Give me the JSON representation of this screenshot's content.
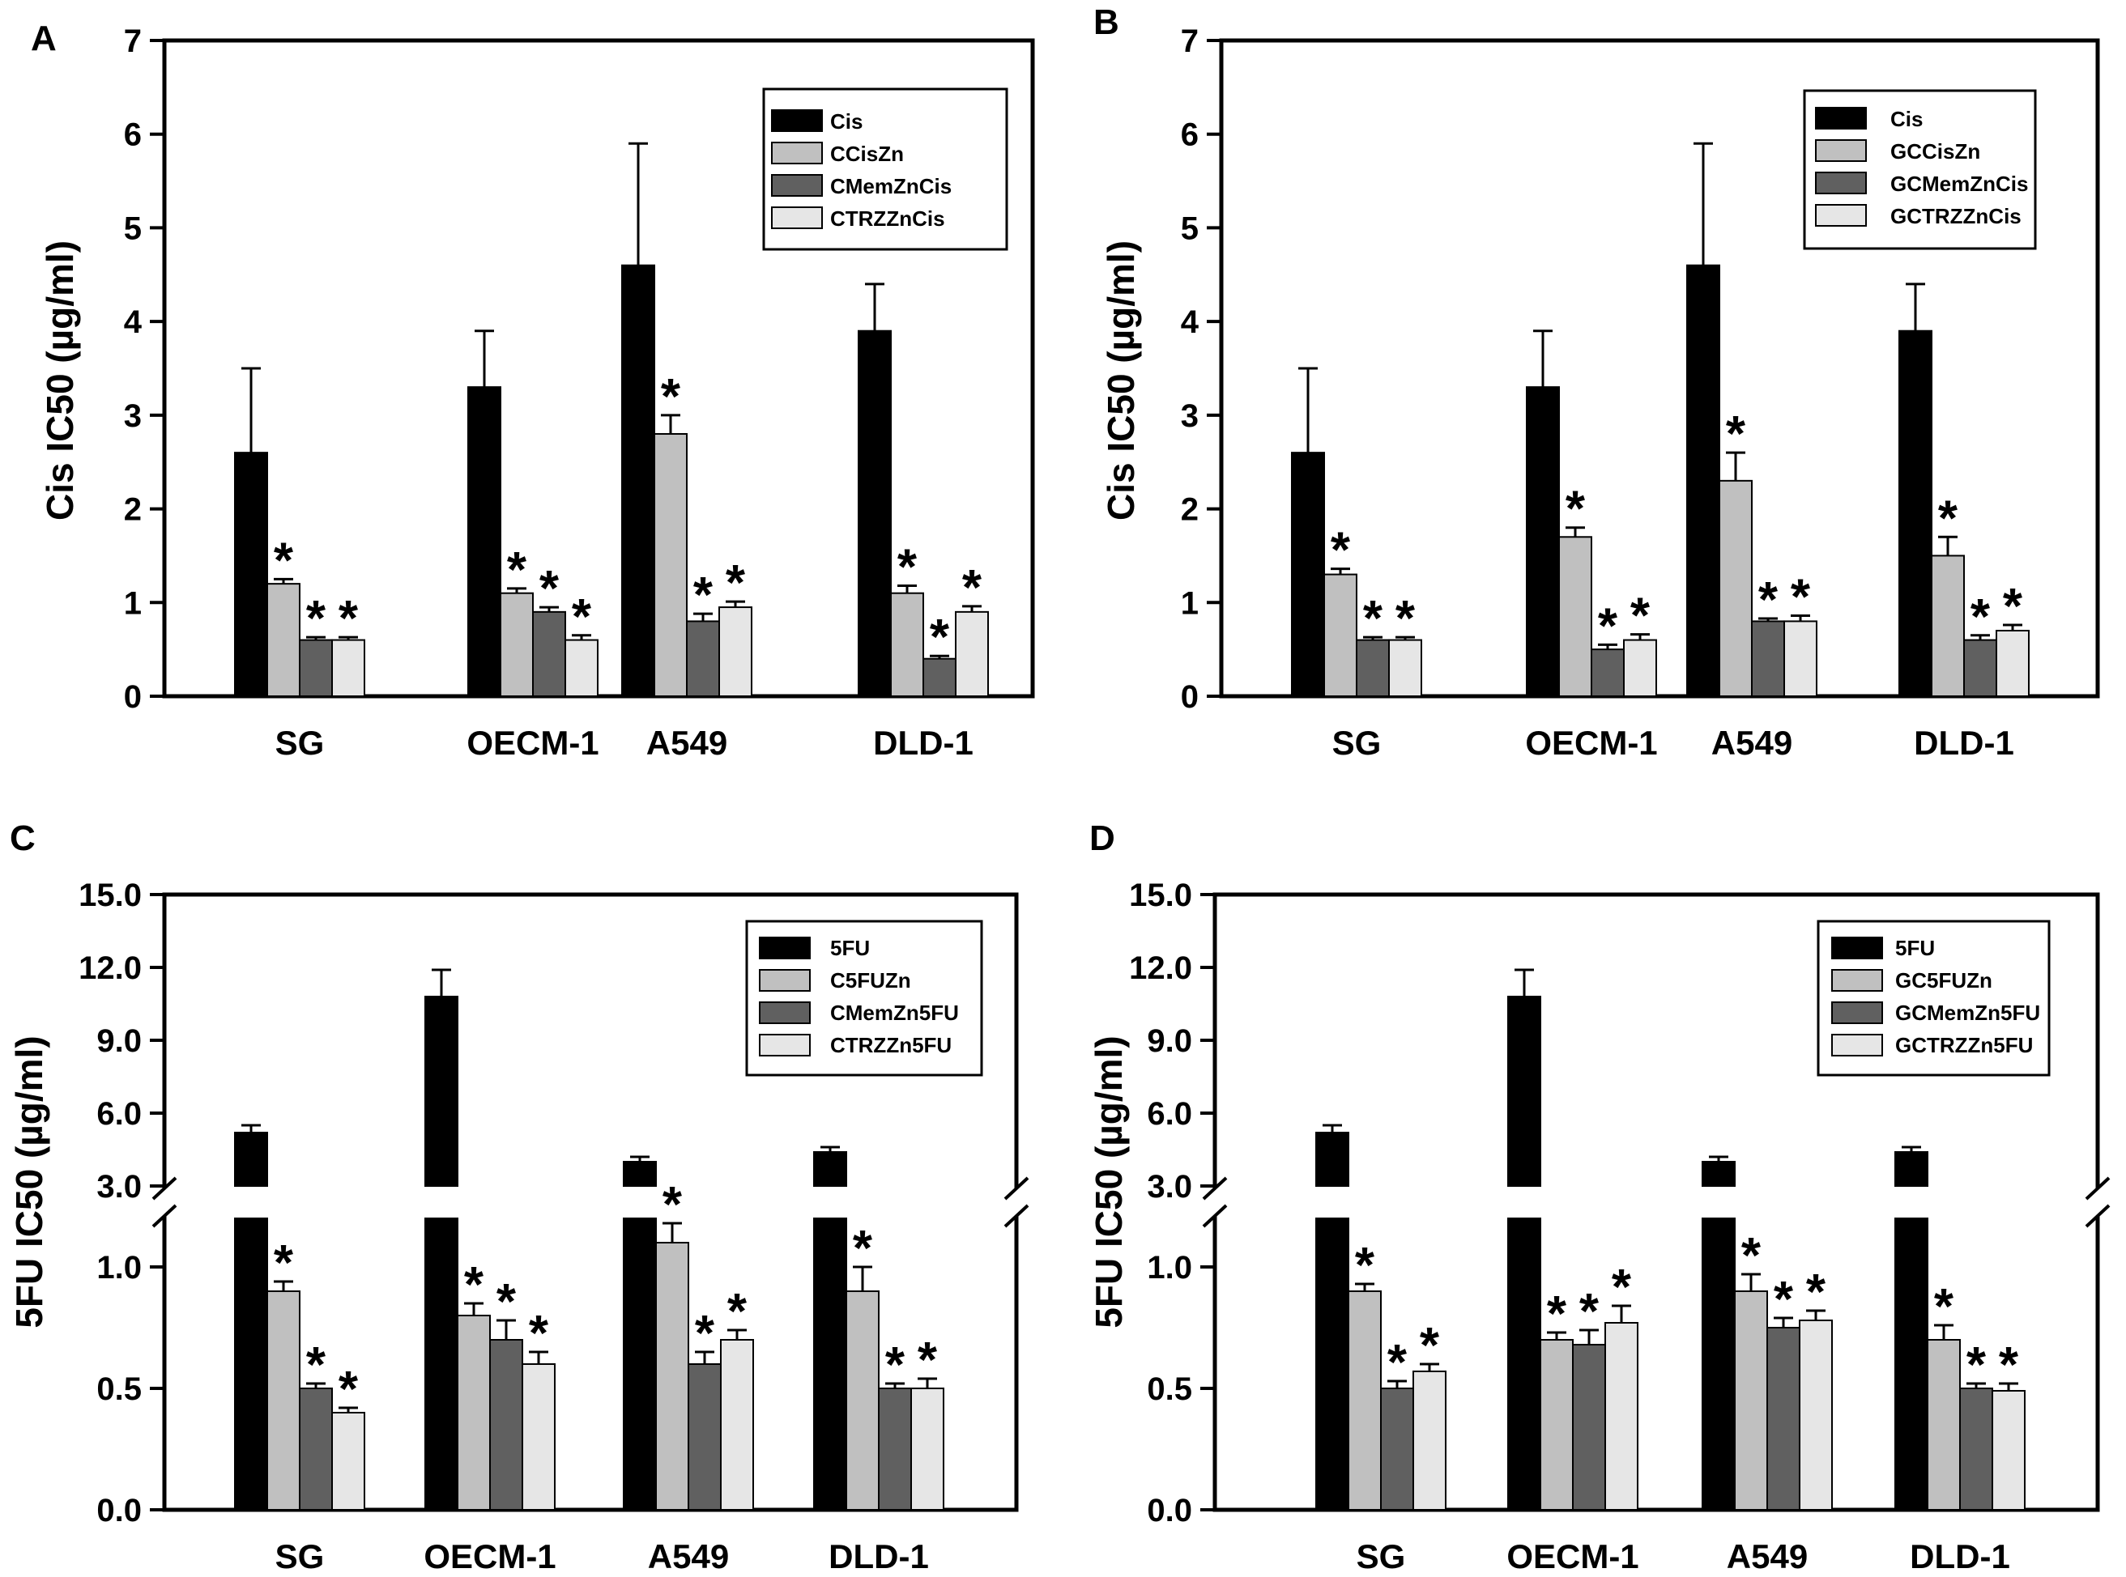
{
  "figure": {
    "categories": [
      "SG",
      "OECM-1",
      "A549",
      "DLD-1"
    ],
    "colors": [
      "#000000",
      "#c0c0c0",
      "#606060",
      "#e6e6e6"
    ],
    "significance_symbol": "*"
  },
  "chart_data": [
    {
      "panel": "A",
      "type": "bar",
      "ylabel": "Cis IC50 (µg/ml)",
      "ylim": [
        0,
        7
      ],
      "yticks": [
        "0",
        "1",
        "2",
        "3",
        "4",
        "5",
        "6",
        "7"
      ],
      "categories": [
        "SG",
        "OECM-1",
        "A549",
        "DLD-1"
      ],
      "series": [
        {
          "name": "Cis",
          "values": [
            2.6,
            3.3,
            4.6,
            3.9
          ],
          "errors": [
            0.9,
            0.6,
            1.3,
            0.5
          ],
          "significant": [
            false,
            false,
            false,
            false
          ]
        },
        {
          "name": "CCisZn",
          "values": [
            1.2,
            1.1,
            2.8,
            1.1
          ],
          "errors": [
            0.05,
            0.05,
            0.2,
            0.08
          ],
          "significant": [
            true,
            true,
            true,
            true
          ]
        },
        {
          "name": "CMemZnCis",
          "values": [
            0.6,
            0.9,
            0.8,
            0.4
          ],
          "errors": [
            0.03,
            0.05,
            0.08,
            0.03
          ],
          "significant": [
            true,
            true,
            true,
            true
          ]
        },
        {
          "name": "CTRZZnCis",
          "values": [
            0.6,
            0.6,
            0.95,
            0.9
          ],
          "errors": [
            0.03,
            0.05,
            0.06,
            0.06
          ],
          "significant": [
            true,
            true,
            true,
            true
          ]
        }
      ]
    },
    {
      "panel": "B",
      "type": "bar",
      "ylabel": "Cis IC50 (µg/ml)",
      "ylim": [
        0,
        7
      ],
      "yticks": [
        "0",
        "1",
        "2",
        "3",
        "4",
        "5",
        "6",
        "7"
      ],
      "categories": [
        "SG",
        "OECM-1",
        "A549",
        "DLD-1"
      ],
      "series": [
        {
          "name": "Cis",
          "values": [
            2.6,
            3.3,
            4.6,
            3.9
          ],
          "errors": [
            0.9,
            0.6,
            1.3,
            0.5
          ],
          "significant": [
            false,
            false,
            false,
            false
          ]
        },
        {
          "name": "GCCisZn",
          "values": [
            1.3,
            1.7,
            2.3,
            1.5
          ],
          "errors": [
            0.06,
            0.1,
            0.3,
            0.2
          ],
          "significant": [
            true,
            true,
            true,
            true
          ]
        },
        {
          "name": "GCMemZnCis",
          "values": [
            0.6,
            0.5,
            0.8,
            0.6
          ],
          "errors": [
            0.03,
            0.05,
            0.03,
            0.05
          ],
          "significant": [
            true,
            true,
            true,
            true
          ]
        },
        {
          "name": "GCTRZZnCis",
          "values": [
            0.6,
            0.6,
            0.8,
            0.7
          ],
          "errors": [
            0.03,
            0.06,
            0.06,
            0.06
          ],
          "significant": [
            true,
            true,
            true,
            true
          ]
        }
      ]
    },
    {
      "panel": "C",
      "type": "bar",
      "broken_axis": true,
      "ylabel": "5FU IC50 (µg/ml)",
      "ylim_lower": [
        0,
        1.2
      ],
      "ylim_upper": [
        3,
        15
      ],
      "yticks_lower": [
        "0.0",
        "0.5",
        "1.0"
      ],
      "yticks_upper": [
        "3.0",
        "6.0",
        "9.0",
        "12.0",
        "15.0"
      ],
      "categories": [
        "SG",
        "OECM-1",
        "A549",
        "DLD-1"
      ],
      "series": [
        {
          "name": "5FU",
          "values": [
            5.2,
            10.8,
            4.0,
            4.4
          ],
          "errors": [
            0.3,
            1.1,
            0.2,
            0.2
          ],
          "significant": [
            false,
            false,
            false,
            false
          ]
        },
        {
          "name": "C5FUZn",
          "values": [
            0.9,
            0.8,
            1.1,
            0.9
          ],
          "errors": [
            0.04,
            0.05,
            0.08,
            0.1
          ],
          "significant": [
            true,
            true,
            true,
            true
          ]
        },
        {
          "name": "CMemZn5FU",
          "values": [
            0.5,
            0.7,
            0.6,
            0.5
          ],
          "errors": [
            0.02,
            0.08,
            0.05,
            0.02
          ],
          "significant": [
            true,
            true,
            true,
            true
          ]
        },
        {
          "name": "CTRZZn5FU",
          "values": [
            0.4,
            0.6,
            0.7,
            0.5
          ],
          "errors": [
            0.02,
            0.05,
            0.04,
            0.04
          ],
          "significant": [
            true,
            true,
            true,
            true
          ]
        }
      ]
    },
    {
      "panel": "D",
      "type": "bar",
      "broken_axis": true,
      "ylabel": "5FU IC50 (µg/ml)",
      "ylim_lower": [
        0,
        1.2
      ],
      "ylim_upper": [
        3,
        15
      ],
      "yticks_lower": [
        "0.0",
        "0.5",
        "1.0"
      ],
      "yticks_upper": [
        "3.0",
        "6.0",
        "9.0",
        "12.0",
        "15.0"
      ],
      "categories": [
        "SG",
        "OECM-1",
        "A549",
        "DLD-1"
      ],
      "series": [
        {
          "name": "5FU",
          "values": [
            5.2,
            10.8,
            4.0,
            4.4
          ],
          "errors": [
            0.3,
            1.1,
            0.2,
            0.2
          ],
          "significant": [
            false,
            false,
            false,
            false
          ]
        },
        {
          "name": "GC5FUZn",
          "values": [
            0.9,
            0.7,
            0.9,
            0.7
          ],
          "errors": [
            0.03,
            0.03,
            0.07,
            0.06
          ],
          "significant": [
            true,
            true,
            true,
            true
          ]
        },
        {
          "name": "GCMemZn5FU",
          "values": [
            0.5,
            0.68,
            0.75,
            0.5
          ],
          "errors": [
            0.03,
            0.06,
            0.04,
            0.02
          ],
          "significant": [
            true,
            true,
            true,
            true
          ]
        },
        {
          "name": "GCTRZZn5FU",
          "values": [
            0.57,
            0.77,
            0.78,
            0.49
          ],
          "errors": [
            0.03,
            0.07,
            0.04,
            0.03
          ],
          "significant": [
            true,
            true,
            true,
            true
          ]
        }
      ]
    }
  ]
}
